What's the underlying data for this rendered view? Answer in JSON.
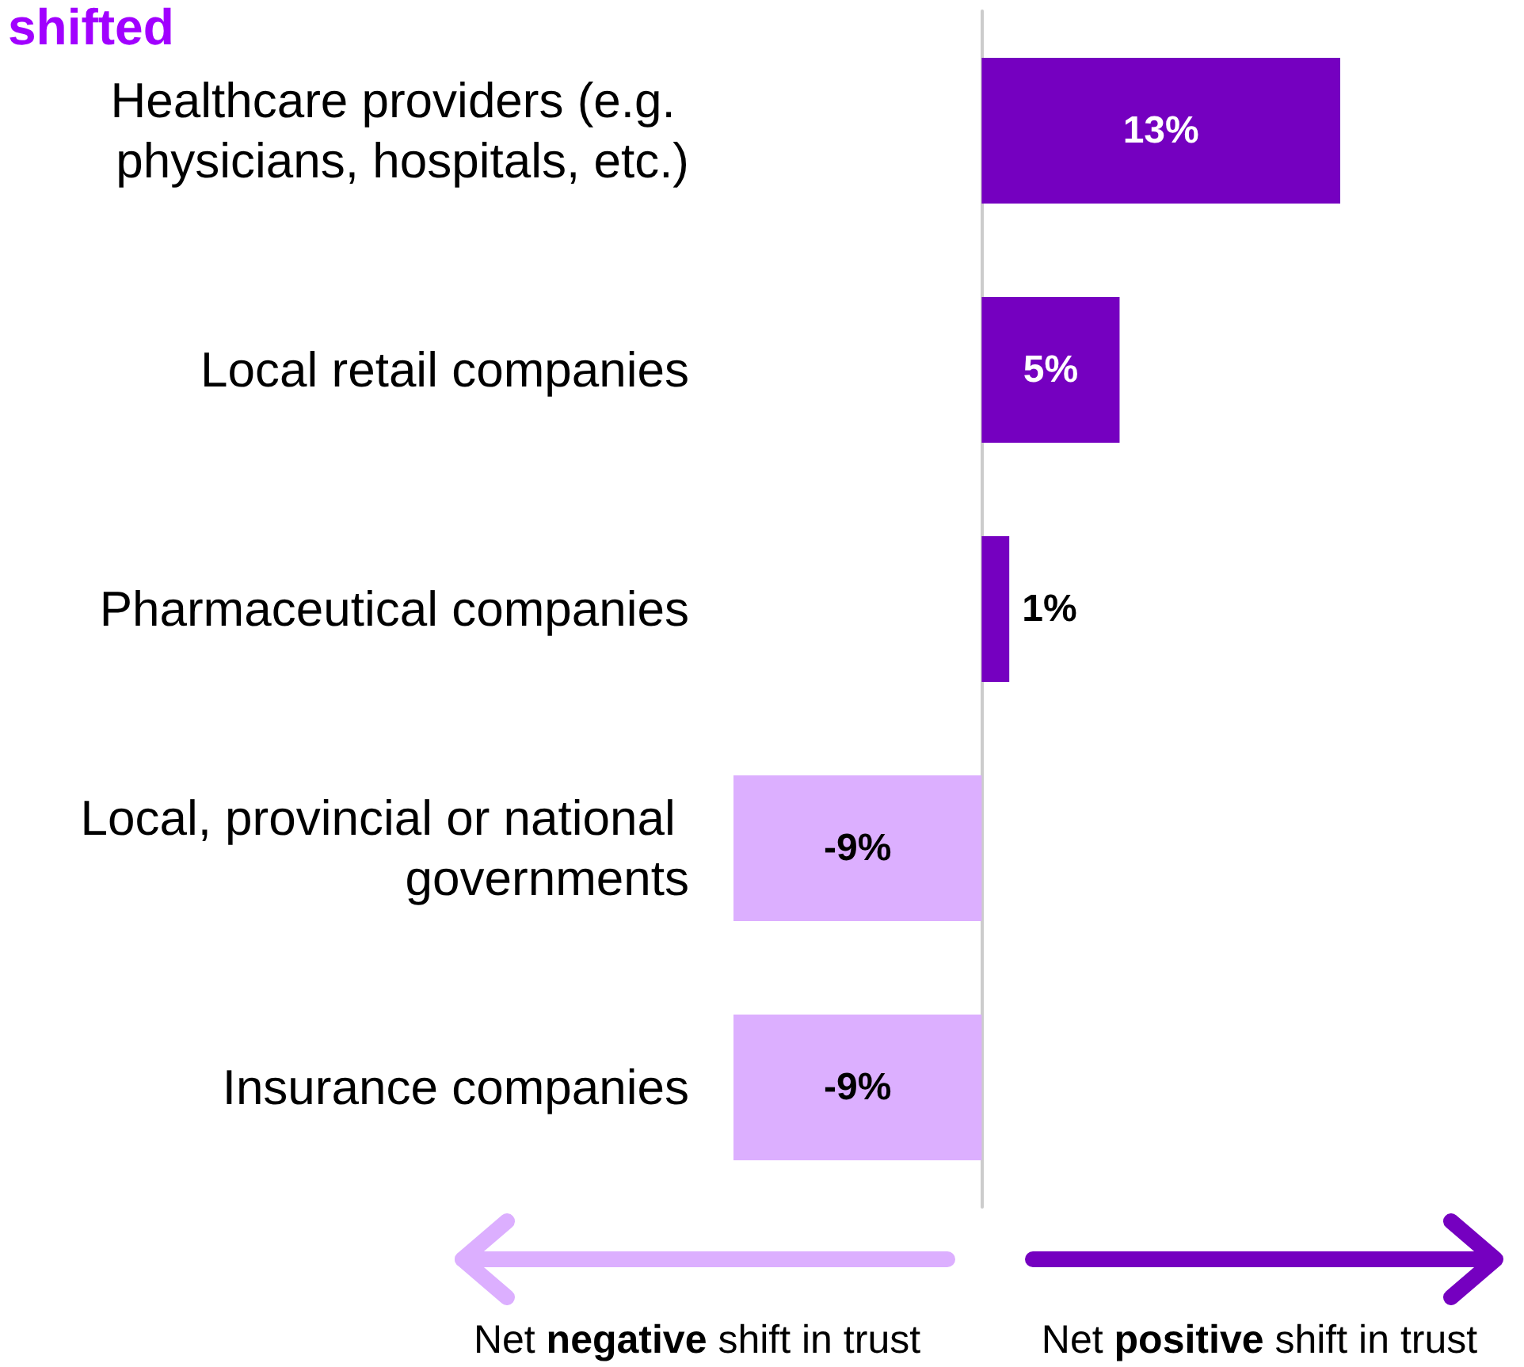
{
  "chart_data": {
    "type": "bar",
    "orientation": "horizontal",
    "title": "shifted",
    "categories": [
      "Healthcare providers (e.g. physicians, hospitals, etc.)",
      "Local retail companies",
      "Pharmaceutical companies",
      "Local, provincial or national governments",
      "Insurance companies"
    ],
    "values": [
      13,
      5,
      1,
      -9,
      -9
    ],
    "colors": [
      "#7500c0",
      "#7500c0",
      "#7500c0",
      "#dcafff",
      "#dcafff"
    ],
    "value_labels": [
      "13%",
      "5%",
      "1%",
      "-9%",
      "-9%"
    ],
    "annotations": [
      "Net negative shift in trust",
      "Net positive shift in trust"
    ]
  }
}
